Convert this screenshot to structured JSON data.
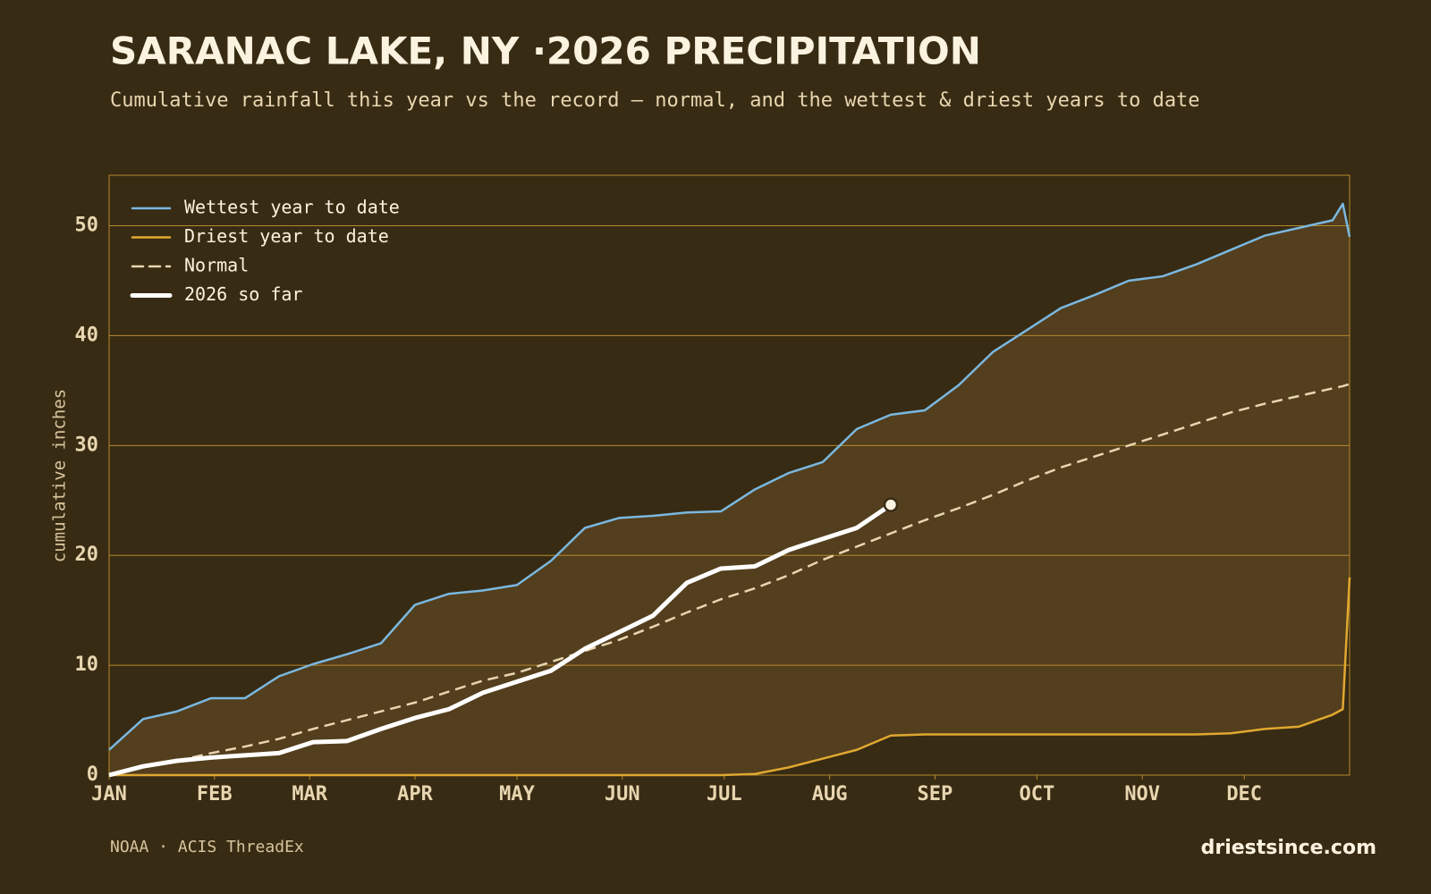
{
  "chart_data": {
    "type": "line",
    "title": "SARANAC LAKE, NY ·2026 PRECIPITATION",
    "subtitle": "Cumulative rainfall this year vs the record — normal, and the wettest & driest years to date",
    "y_label": "cumulative inches",
    "source": "NOAA · ACIS ThreadEx",
    "brand": "driestsince.com",
    "legend": "upper left",
    "grid": true,
    "fill_between": "#533e1d",
    "x": [
      0,
      10,
      20,
      30,
      40,
      50,
      60,
      70,
      80,
      90,
      100,
      110,
      120,
      130,
      140,
      150,
      160,
      170,
      180,
      190,
      200,
      210,
      220,
      230,
      240,
      250,
      260,
      270,
      280,
      290,
      300,
      310,
      320,
      330,
      340,
      350,
      360,
      363,
      365
    ],
    "xlim": [
      0,
      365
    ],
    "xticks": [
      {
        "value": 0,
        "label": "JAN"
      },
      {
        "value": 31,
        "label": "FEB"
      },
      {
        "value": 59,
        "label": "MAR"
      },
      {
        "value": 90,
        "label": "APR"
      },
      {
        "value": 120,
        "label": "MAY"
      },
      {
        "value": 151,
        "label": "JUN"
      },
      {
        "value": 181,
        "label": "JUL"
      },
      {
        "value": 212,
        "label": "AUG"
      },
      {
        "value": 243,
        "label": "SEP"
      },
      {
        "value": 273,
        "label": "OCT"
      },
      {
        "value": 304,
        "label": "NOV"
      },
      {
        "value": 334,
        "label": "DEC"
      }
    ],
    "ylim": [
      0,
      54.6
    ],
    "yticks": [
      0,
      10,
      20,
      30,
      40,
      50
    ],
    "series": [
      {
        "name": "Wettest year to date",
        "color": "#7ab8e0",
        "width": 2.5,
        "values": [
          2.3,
          5.1,
          5.8,
          7.0,
          7.0,
          9.0,
          10.1,
          11.0,
          12.0,
          15.5,
          16.5,
          16.8,
          17.3,
          19.5,
          22.5,
          23.4,
          23.6,
          23.9,
          24.0,
          26.0,
          27.5,
          28.5,
          31.5,
          32.8,
          33.2,
          35.5,
          38.5,
          40.5,
          42.5,
          43.7,
          45.0,
          45.4,
          46.5,
          47.8,
          49.1,
          49.8,
          50.5,
          52.0,
          49.0
        ]
      },
      {
        "name": "Driest year to date",
        "color": "#e0a830",
        "width": 2.5,
        "values": [
          0,
          0,
          0,
          0,
          0,
          0,
          0,
          0,
          0,
          0,
          0,
          0,
          0,
          0,
          0,
          0,
          0,
          0,
          0,
          0.1,
          0.7,
          1.5,
          2.3,
          3.6,
          3.7,
          3.7,
          3.7,
          3.7,
          3.7,
          3.7,
          3.7,
          3.7,
          3.7,
          3.8,
          4.2,
          4.4,
          5.5,
          6.0,
          18.0
        ]
      },
      {
        "name": "Normal",
        "color": "#e8d6b0",
        "width": 2.5,
        "dash": true,
        "values": [
          0,
          0.7,
          1.3,
          2.0,
          2.6,
          3.3,
          4.2,
          5.0,
          5.8,
          6.6,
          7.6,
          8.6,
          9.3,
          10.3,
          11.3,
          12.3,
          13.5,
          14.8,
          16.0,
          17.0,
          18.2,
          19.6,
          20.8,
          22.0,
          23.2,
          24.3,
          25.5,
          26.8,
          28.0,
          29.0,
          30.0,
          31.0,
          32.0,
          33.0,
          33.8,
          34.5,
          35.2,
          35.4,
          35.6
        ]
      },
      {
        "name": "2026 so far",
        "color": "#ffffff",
        "width": 5,
        "end_marker": true,
        "values": [
          0,
          0.8,
          1.3,
          1.6,
          1.8,
          2.0,
          3.0,
          3.1,
          4.2,
          5.2,
          6.0,
          7.5,
          8.5,
          9.5,
          11.5,
          13.0,
          14.5,
          17.5,
          18.8,
          19.0,
          20.5,
          21.5,
          22.5,
          24.6,
          null,
          null,
          null,
          null,
          null,
          null,
          null,
          null,
          null,
          null,
          null,
          null,
          null,
          null,
          null
        ]
      }
    ]
  }
}
